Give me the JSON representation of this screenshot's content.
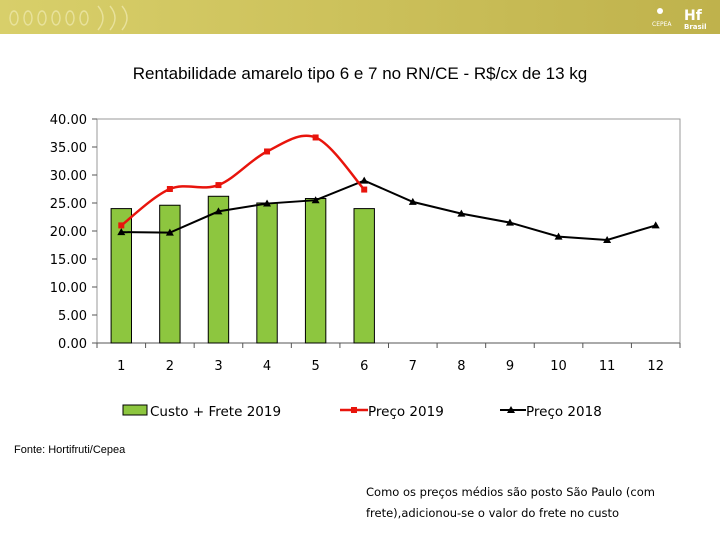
{
  "colors": {
    "bar_fill": "#8dc63f",
    "bar_stroke": "#000000",
    "price_2019": "#e8140c",
    "price_2018": "#000000",
    "banner": "#cdc25c"
  },
  "chart_data": {
    "type": "bar",
    "title": "Rentabilidade amarelo tipo 6 e 7 no RN/CE - R$/cx de 13 kg",
    "categories": [
      "1",
      "2",
      "3",
      "4",
      "5",
      "6",
      "7",
      "8",
      "9",
      "10",
      "11",
      "12"
    ],
    "ylim": [
      0,
      40
    ],
    "yticks": [
      "0.00",
      "5.00",
      "10.00",
      "15.00",
      "20.00",
      "25.00",
      "30.00",
      "35.00",
      "40.00"
    ],
    "series": [
      {
        "name": "Custo + Frete 2019",
        "type": "bar",
        "values": [
          24.0,
          24.6,
          26.2,
          25.0,
          25.8,
          24.0,
          null,
          null,
          null,
          null,
          null,
          null
        ]
      },
      {
        "name": "Preço 2019",
        "type": "line",
        "smooth": true,
        "values": [
          21.0,
          27.5,
          28.2,
          34.2,
          36.7,
          27.4,
          null,
          null,
          null,
          null,
          null,
          null
        ]
      },
      {
        "name": "Preço 2018",
        "type": "line",
        "smooth": false,
        "values": [
          19.8,
          19.7,
          23.5,
          24.9,
          25.5,
          29.0,
          25.2,
          23.1,
          21.5,
          19.0,
          18.4,
          21.0
        ]
      }
    ],
    "legend": [
      "Custo + Frete 2019",
      "Preço 2019",
      "Preço 2018"
    ],
    "legend_position": "bottom"
  },
  "source_text": "Fonte: Hortifruti/Cepea",
  "note_text": "Como os preços médios são posto São Paulo (com frete),adicionou-se o valor do frete no custo",
  "logo": {
    "org": "CEPEA",
    "brand": "Hf",
    "brand_sub": "Brasil"
  }
}
